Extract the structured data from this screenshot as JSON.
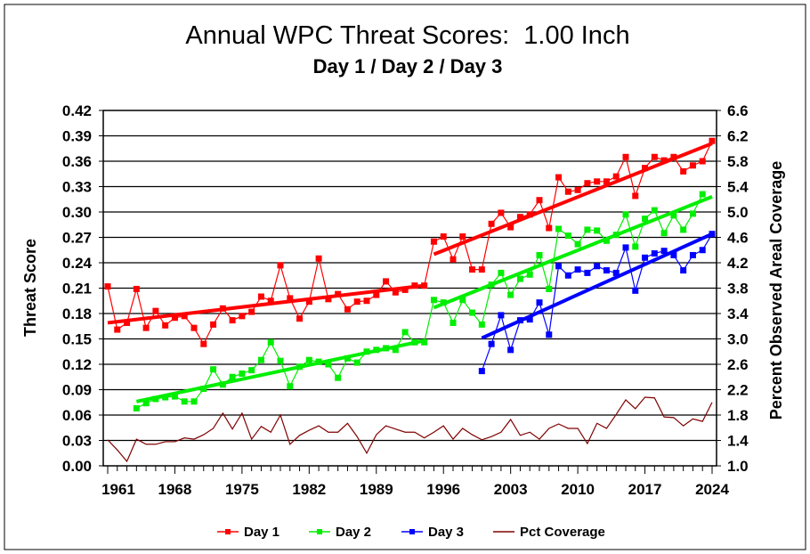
{
  "chart_data": {
    "type": "line",
    "title": "Annual WPC Threat Scores:  1.00 Inch",
    "subtitle": "Day 1 / Day 2 / Day 3",
    "ylabel": "Threat Score",
    "y2label": "Percent Observed Areal Coverage",
    "ylim": [
      0,
      0.42
    ],
    "y2lim": [
      1.0,
      6.6
    ],
    "xlim": [
      1961,
      2024
    ],
    "yticks": [
      "0.00",
      "0.03",
      "0.06",
      "0.09",
      "0.12",
      "0.15",
      "0.18",
      "0.21",
      "0.24",
      "0.27",
      "0.30",
      "0.33",
      "0.36",
      "0.39",
      "0.42"
    ],
    "y2ticks": [
      "1.0",
      "1.4",
      "1.8",
      "2.2",
      "2.6",
      "3.0",
      "3.4",
      "3.8",
      "4.2",
      "4.6",
      "5.0",
      "5.4",
      "5.8",
      "6.2",
      "6.6"
    ],
    "xticks": [
      "1961",
      "1968",
      "1975",
      "1982",
      "1989",
      "1996",
      "2003",
      "2010",
      "2017",
      "2024"
    ],
    "grid": true,
    "legend_position": "bottom",
    "series": [
      {
        "name": "Day 1",
        "color": "#ff0000",
        "start": 1961,
        "axis": "left",
        "values": [
          0.212,
          0.161,
          0.169,
          0.209,
          0.163,
          0.183,
          0.166,
          0.175,
          0.177,
          0.163,
          0.144,
          0.167,
          0.186,
          0.172,
          0.177,
          0.182,
          0.2,
          0.195,
          0.237,
          0.198,
          0.174,
          0.194,
          0.245,
          0.197,
          0.203,
          0.185,
          0.194,
          0.195,
          0.202,
          0.218,
          0.205,
          0.208,
          0.213,
          0.213,
          0.265,
          0.271,
          0.244,
          0.271,
          0.232,
          0.232,
          0.286,
          0.299,
          0.282,
          0.294,
          0.297,
          0.314,
          0.281,
          0.341,
          0.324,
          0.326,
          0.334,
          0.336,
          0.336,
          0.342,
          0.365,
          0.319,
          0.352,
          0.365,
          0.361,
          0.365,
          0.348,
          0.355,
          0.36,
          0.384
        ],
        "trends": [
          [
            1961,
            0.169,
            1994,
            0.213
          ],
          [
            1995,
            0.25,
            2024,
            0.381
          ]
        ]
      },
      {
        "name": "Day 2",
        "color": "#00ee00",
        "start": 1964,
        "axis": "left",
        "values": [
          0.068,
          0.074,
          0.079,
          0.081,
          0.082,
          0.076,
          0.076,
          0.091,
          0.114,
          0.096,
          0.105,
          0.109,
          0.113,
          0.125,
          0.146,
          0.124,
          0.094,
          0.117,
          0.125,
          0.123,
          0.12,
          0.104,
          0.127,
          0.122,
          0.135,
          0.137,
          0.139,
          0.137,
          0.158,
          0.146,
          0.146,
          0.196,
          0.193,
          0.169,
          0.196,
          0.181,
          0.167,
          0.214,
          0.228,
          0.202,
          0.221,
          0.226,
          0.249,
          0.209,
          0.28,
          0.272,
          0.262,
          0.279,
          0.278,
          0.266,
          0.273,
          0.297,
          0.259,
          0.292,
          0.302,
          0.275,
          0.296,
          0.279,
          0.298,
          0.321
        ],
        "trends": [
          [
            1964,
            0.076,
            1994,
            0.148
          ],
          [
            1995,
            0.187,
            2024,
            0.318
          ]
        ]
      },
      {
        "name": "Day 3",
        "color": "#0000ff",
        "start": 2000,
        "axis": "left",
        "values": [
          0.112,
          0.144,
          0.178,
          0.137,
          0.172,
          0.173,
          0.193,
          0.155,
          0.236,
          0.225,
          0.232,
          0.228,
          0.236,
          0.231,
          0.228,
          0.258,
          0.207,
          0.246,
          0.251,
          0.254,
          0.249,
          0.231,
          0.249,
          0.255,
          0.274
        ],
        "trends": [
          [
            2000,
            0.151,
            2024,
            0.274
          ]
        ]
      },
      {
        "name": "Pct Coverage",
        "color": "#800000",
        "start": 1961,
        "axis": "right",
        "values": [
          1.41,
          1.25,
          1.07,
          1.42,
          1.34,
          1.34,
          1.38,
          1.38,
          1.44,
          1.42,
          1.49,
          1.59,
          1.83,
          1.58,
          1.83,
          1.42,
          1.62,
          1.53,
          1.8,
          1.34,
          1.48,
          1.56,
          1.63,
          1.53,
          1.53,
          1.67,
          1.46,
          1.2,
          1.49,
          1.63,
          1.58,
          1.53,
          1.53,
          1.44,
          1.53,
          1.63,
          1.42,
          1.59,
          1.49,
          1.41,
          1.46,
          1.53,
          1.73,
          1.48,
          1.53,
          1.42,
          1.59,
          1.66,
          1.59,
          1.59,
          1.35,
          1.67,
          1.59,
          1.81,
          2.04,
          1.9,
          2.08,
          2.07,
          1.77,
          1.76,
          1.63,
          1.74,
          1.7,
          2.0
        ]
      }
    ]
  }
}
